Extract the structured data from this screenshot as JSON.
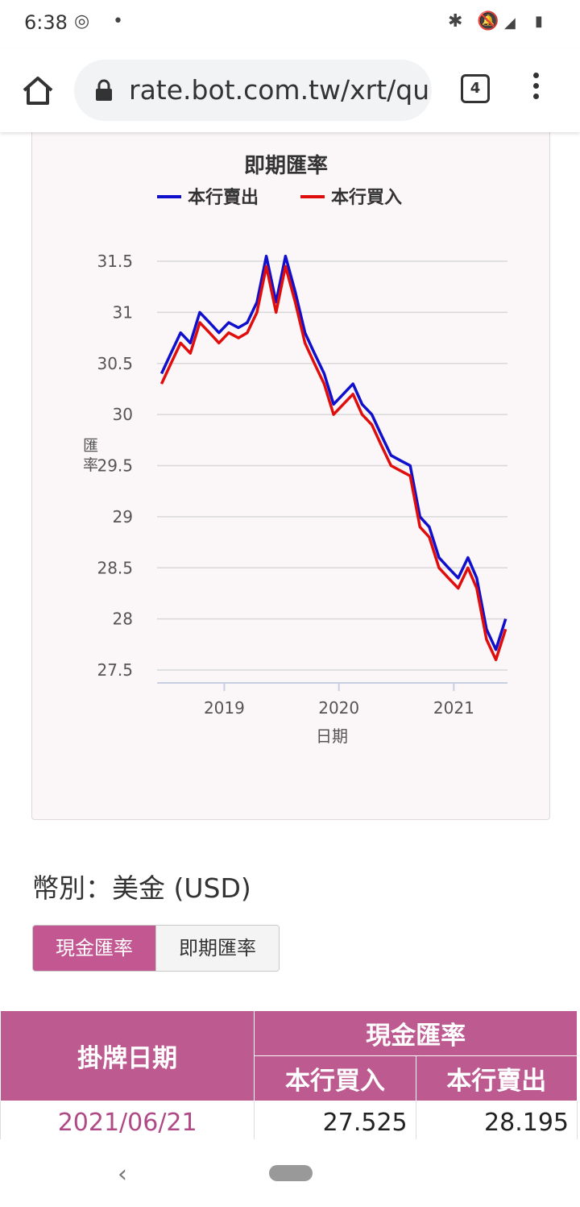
{
  "status_bar": {
    "time": "6:38"
  },
  "browser": {
    "url": "rate.bot.com.tw/xrt/qu",
    "tab_count": "4"
  },
  "chart_data": {
    "type": "line",
    "title": "即期匯率",
    "ylabel": "匯率",
    "xlabel": "日期",
    "legend_position": "top",
    "ylim": [
      27.4,
      31.6
    ],
    "yticks": [
      "27.5",
      "28",
      "28.5",
      "29",
      "29.5",
      "30",
      "30.5",
      "31",
      "31.5"
    ],
    "xticks": [
      "2019",
      "2020",
      "2021"
    ],
    "grid": true,
    "x": [
      "2018-06",
      "2018-07",
      "2018-08",
      "2018-09",
      "2018-10",
      "2018-11",
      "2018-12",
      "2019-01",
      "2019-02",
      "2019-03",
      "2019-04",
      "2019-05",
      "2019-06",
      "2019-07",
      "2019-08",
      "2019-09",
      "2019-10",
      "2019-11",
      "2019-12",
      "2020-01",
      "2020-02",
      "2020-03",
      "2020-04",
      "2020-05",
      "2020-06",
      "2020-07",
      "2020-08",
      "2020-09",
      "2020-10",
      "2020-11",
      "2020-12",
      "2021-01",
      "2021-02",
      "2021-03",
      "2021-04",
      "2021-05",
      "2021-06"
    ],
    "series": [
      {
        "name": "本行賣出",
        "color": "#1010cc",
        "values": [
          30.4,
          30.6,
          30.8,
          30.7,
          31.0,
          30.9,
          30.8,
          30.9,
          30.85,
          30.9,
          31.1,
          31.55,
          31.1,
          31.55,
          31.2,
          30.8,
          30.6,
          30.4,
          30.1,
          30.2,
          30.3,
          30.1,
          30.0,
          29.8,
          29.6,
          29.55,
          29.5,
          29.0,
          28.9,
          28.6,
          28.5,
          28.4,
          28.6,
          28.4,
          27.9,
          27.7,
          28.0
        ]
      },
      {
        "name": "本行買入",
        "color": "#e00d0d",
        "values": [
          30.3,
          30.5,
          30.7,
          30.6,
          30.9,
          30.8,
          30.7,
          30.8,
          30.75,
          30.8,
          31.0,
          31.45,
          31.0,
          31.45,
          31.1,
          30.7,
          30.5,
          30.3,
          30.0,
          30.1,
          30.2,
          30.0,
          29.9,
          29.7,
          29.5,
          29.45,
          29.4,
          28.9,
          28.8,
          28.5,
          28.4,
          28.3,
          28.5,
          28.3,
          27.8,
          27.6,
          27.9
        ]
      }
    ]
  },
  "currency_label": "幣別：美金 (USD)",
  "toggle": {
    "cash_label": "現金匯率",
    "spot_label": "即期匯率"
  },
  "table": {
    "date_header": "掛牌日期",
    "group_header": "現金匯率",
    "buy_header": "本行買入",
    "sell_header": "本行賣出",
    "rows": [
      {
        "date": "2021/06/21",
        "buy": "27.525",
        "sell": "28.195"
      }
    ]
  }
}
